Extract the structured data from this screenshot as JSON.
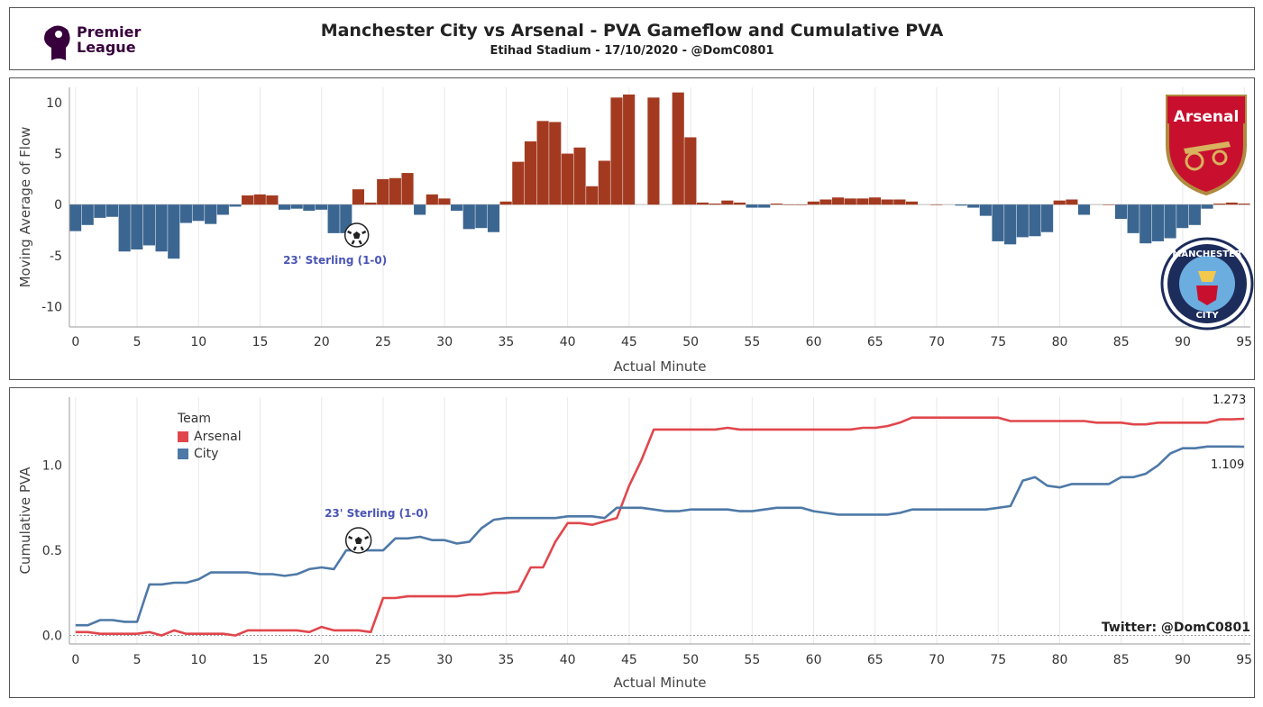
{
  "header": {
    "title": "Manchester City vs Arsenal - PVA Gameflow and Cumulative PVA",
    "subtitle": "Etihad Stadium - 17/10/2020 - @DomC0801",
    "logo_text_line1": "Premier",
    "logo_text_line2": "League"
  },
  "colors": {
    "arsenal_bar": "#a33a20",
    "city_bar": "#3b6691",
    "arsenal_line": "#e0474c",
    "city_line": "#4e79a7"
  },
  "crests": {
    "arsenal_label": "Arsenal",
    "city_label_top": "MANCHESTER",
    "city_label_bottom": "CITY"
  },
  "chart_data": [
    {
      "type": "bar",
      "xlabel": "Actual Minute",
      "ylabel": "Moving Average of Flow",
      "xlim": [
        -0.5,
        95.5
      ],
      "ylim": [
        -12,
        11.5
      ],
      "xticks": [
        0,
        5,
        10,
        15,
        20,
        25,
        30,
        35,
        40,
        45,
        50,
        55,
        60,
        65,
        70,
        75,
        80,
        85,
        90,
        95
      ],
      "yticks": [
        -10,
        -5,
        0,
        5,
        10
      ],
      "minutes": [
        0,
        1,
        2,
        3,
        4,
        5,
        6,
        7,
        8,
        9,
        10,
        11,
        12,
        13,
        14,
        15,
        16,
        17,
        18,
        19,
        20,
        21,
        22,
        23,
        24,
        25,
        26,
        27,
        28,
        29,
        30,
        31,
        32,
        33,
        34,
        35,
        36,
        37,
        38,
        39,
        40,
        41,
        42,
        43,
        44,
        45,
        46,
        47,
        48,
        49,
        50,
        51,
        52,
        53,
        54,
        55,
        56,
        57,
        58,
        59,
        60,
        61,
        62,
        63,
        64,
        65,
        66,
        67,
        68,
        69,
        70,
        71,
        72,
        73,
        74,
        75,
        76,
        77,
        78,
        79,
        80,
        81,
        82,
        83,
        84,
        85,
        86,
        87,
        88,
        89,
        90,
        91,
        92,
        93,
        94,
        95
      ],
      "values": [
        -2.6,
        -2.0,
        -1.3,
        -1.2,
        -4.6,
        -4.4,
        -4.0,
        -4.6,
        -5.3,
        -1.8,
        -1.6,
        -1.9,
        -1.0,
        -0.2,
        0.9,
        1.0,
        0.9,
        -0.5,
        -0.4,
        -0.6,
        -0.5,
        -2.8,
        -2.8,
        1.5,
        0.2,
        2.5,
        2.6,
        3.1,
        -1.0,
        1.0,
        0.6,
        -0.6,
        -2.4,
        -2.3,
        -2.7,
        0.3,
        4.2,
        6.2,
        8.2,
        8.1,
        5.0,
        5.6,
        1.8,
        4.3,
        10.5,
        10.8,
        null,
        10.5,
        null,
        11.0,
        6.6,
        0.2,
        0.1,
        0.4,
        0.2,
        -0.3,
        -0.3,
        0.1,
        0.0,
        0.0,
        0.3,
        0.5,
        0.7,
        0.6,
        0.6,
        0.7,
        0.5,
        0.5,
        0.3,
        null,
        0.0,
        null,
        -0.1,
        -0.3,
        -1.1,
        -3.6,
        -3.9,
        -3.2,
        -3.1,
        -2.7,
        0.4,
        0.5,
        -1.0,
        null,
        0.0,
        -1.4,
        -2.8,
        -3.8,
        -3.6,
        -3.3,
        -2.3,
        -2.0,
        -0.4,
        0.1,
        0.2,
        0.1
      ],
      "annotation": "23' Sterling (1-0)",
      "annotation_minute": 23
    },
    {
      "type": "line",
      "xlabel": "Actual Minute",
      "ylabel": "Cumulative PVA",
      "xlim": [
        -0.5,
        95.5
      ],
      "ylim": [
        -0.05,
        1.4
      ],
      "xticks": [
        0,
        5,
        10,
        15,
        20,
        25,
        30,
        35,
        40,
        45,
        50,
        55,
        60,
        65,
        70,
        75,
        80,
        85,
        90,
        95
      ],
      "yticks": [
        0.0,
        0.5,
        1.0
      ],
      "legend_title": "Team",
      "series": [
        {
          "name": "Arsenal",
          "x": [
            0,
            1,
            2,
            3,
            4,
            5,
            6,
            7,
            8,
            9,
            10,
            11,
            12,
            13,
            14,
            15,
            16,
            17,
            18,
            19,
            20,
            21,
            22,
            23,
            24,
            25,
            26,
            27,
            28,
            29,
            30,
            31,
            32,
            33,
            34,
            35,
            36,
            37,
            38,
            39,
            40,
            41,
            42,
            43,
            44,
            45,
            46,
            47,
            48,
            49,
            50,
            51,
            52,
            53,
            54,
            55,
            56,
            57,
            58,
            59,
            60,
            61,
            62,
            63,
            64,
            65,
            66,
            67,
            68,
            69,
            70,
            71,
            72,
            73,
            74,
            75,
            76,
            77,
            78,
            79,
            80,
            81,
            82,
            83,
            84,
            85,
            86,
            87,
            88,
            89,
            90,
            91,
            92,
            93,
            94,
            95
          ],
          "y": [
            0.02,
            0.02,
            0.01,
            0.01,
            0.01,
            0.01,
            0.02,
            0.0,
            0.03,
            0.01,
            0.01,
            0.01,
            0.01,
            0.0,
            0.03,
            0.03,
            0.03,
            0.03,
            0.03,
            0.02,
            0.05,
            0.03,
            0.03,
            0.03,
            0.02,
            0.22,
            0.22,
            0.23,
            0.23,
            0.23,
            0.23,
            0.23,
            0.24,
            0.24,
            0.25,
            0.25,
            0.26,
            0.4,
            0.4,
            0.55,
            0.66,
            0.66,
            0.65,
            0.67,
            0.69,
            0.88,
            1.03,
            1.21,
            1.21,
            1.21,
            1.21,
            1.21,
            1.21,
            1.22,
            1.21,
            1.21,
            1.21,
            1.21,
            1.21,
            1.21,
            1.21,
            1.21,
            1.21,
            1.21,
            1.22,
            1.22,
            1.23,
            1.25,
            1.28,
            1.28,
            1.28,
            1.28,
            1.28,
            1.28,
            1.28,
            1.28,
            1.26,
            1.26,
            1.26,
            1.26,
            1.26,
            1.26,
            1.26,
            1.25,
            1.25,
            1.25,
            1.24,
            1.24,
            1.25,
            1.25,
            1.25,
            1.25,
            1.25,
            1.27,
            1.27,
            1.273
          ]
        },
        {
          "name": "City",
          "x": [
            0,
            1,
            2,
            3,
            4,
            5,
            6,
            7,
            8,
            9,
            10,
            11,
            12,
            13,
            14,
            15,
            16,
            17,
            18,
            19,
            20,
            21,
            22,
            23,
            24,
            25,
            26,
            27,
            28,
            29,
            30,
            31,
            32,
            33,
            34,
            35,
            36,
            37,
            38,
            39,
            40,
            41,
            42,
            43,
            44,
            45,
            46,
            47,
            48,
            49,
            50,
            51,
            52,
            53,
            54,
            55,
            56,
            57,
            58,
            59,
            60,
            61,
            62,
            63,
            64,
            65,
            66,
            67,
            68,
            69,
            70,
            71,
            72,
            73,
            74,
            75,
            76,
            77,
            78,
            79,
            80,
            81,
            82,
            83,
            84,
            85,
            86,
            87,
            88,
            89,
            90,
            91,
            92,
            93,
            94,
            95
          ],
          "y": [
            0.06,
            0.06,
            0.09,
            0.09,
            0.08,
            0.08,
            0.3,
            0.3,
            0.31,
            0.31,
            0.33,
            0.37,
            0.37,
            0.37,
            0.37,
            0.36,
            0.36,
            0.35,
            0.36,
            0.39,
            0.4,
            0.39,
            0.5,
            0.5,
            0.5,
            0.5,
            0.57,
            0.57,
            0.58,
            0.56,
            0.56,
            0.54,
            0.55,
            0.63,
            0.68,
            0.69,
            0.69,
            0.69,
            0.69,
            0.69,
            0.7,
            0.7,
            0.7,
            0.69,
            0.75,
            0.75,
            0.75,
            0.74,
            0.73,
            0.73,
            0.74,
            0.74,
            0.74,
            0.74,
            0.73,
            0.73,
            0.74,
            0.75,
            0.75,
            0.75,
            0.73,
            0.72,
            0.71,
            0.71,
            0.71,
            0.71,
            0.71,
            0.72,
            0.74,
            0.74,
            0.74,
            0.74,
            0.74,
            0.74,
            0.74,
            0.75,
            0.76,
            0.91,
            0.93,
            0.88,
            0.87,
            0.89,
            0.89,
            0.89,
            0.89,
            0.93,
            0.93,
            0.95,
            1.0,
            1.07,
            1.1,
            1.1,
            1.11,
            1.11,
            1.11,
            1.109
          ]
        }
      ],
      "end_labels": [
        "1.273",
        "1.109"
      ],
      "annotation": "23' Sterling (1-0)",
      "annotation_minute": 23,
      "credit": "Twitter: @DomC0801"
    }
  ]
}
